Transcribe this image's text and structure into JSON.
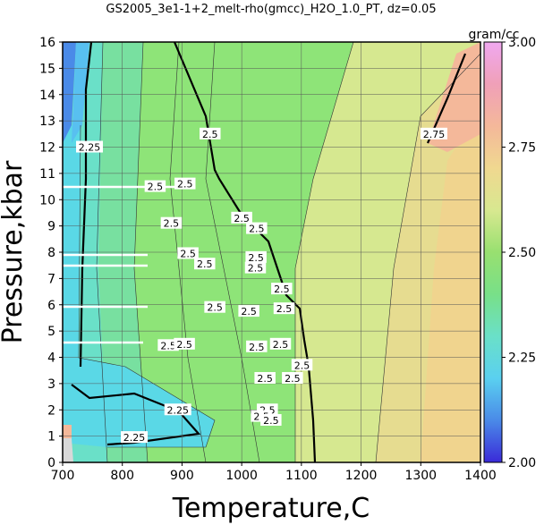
{
  "chart_data": {
    "type": "heatmap",
    "title": "GS2005_3e1-1+2_melt-rho(gmcc)_H2O_1.0_PT, dz=0.05",
    "xlabel": "Temperature,C",
    "ylabel": "Pressure,kbar",
    "xlim": [
      700,
      1400
    ],
    "ylim": [
      0,
      16
    ],
    "x_ticks": [
      "700",
      "800",
      "900",
      "1000",
      "1100",
      "1200",
      "1300",
      "1400"
    ],
    "y_ticks": [
      "0",
      "1",
      "2",
      "3",
      "4",
      "5",
      "6",
      "7",
      "8",
      "9",
      "10",
      "11",
      "12",
      "13",
      "14",
      "15",
      "16"
    ],
    "grid": true,
    "colorbar": {
      "unit": "gram/cc",
      "range": [
        2.0,
        3.0
      ],
      "ticks": [
        "2.00",
        "2.25",
        "2.50",
        "2.75",
        "3.00"
      ],
      "colors": [
        "#3a2ad8",
        "#4a8ae8",
        "#5ad0f0",
        "#6ae0c8",
        "#78e088",
        "#98e070",
        "#d8e890",
        "#f0d890",
        "#f4b89a",
        "#f0a0b8",
        "#f0a8f0"
      ]
    },
    "contour_labels": [
      {
        "text": "2.25",
        "t": 745,
        "p": 12.0
      },
      {
        "text": "2.25",
        "t": 893,
        "p": 2.0
      },
      {
        "text": "2.25",
        "t": 820,
        "p": 0.95
      },
      {
        "text": "2.5",
        "t": 947,
        "p": 12.5
      },
      {
        "text": "2.5",
        "t": 905,
        "p": 10.6
      },
      {
        "text": "2.5",
        "t": 855,
        "p": 10.5
      },
      {
        "text": "2.5",
        "t": 1000,
        "p": 9.3
      },
      {
        "text": "2.5",
        "t": 1025,
        "p": 8.9
      },
      {
        "text": "2.5",
        "t": 882,
        "p": 9.1
      },
      {
        "text": "2.5",
        "t": 910,
        "p": 7.95
      },
      {
        "text": "2.5",
        "t": 1024,
        "p": 7.8
      },
      {
        "text": "2.5",
        "t": 938,
        "p": 7.55
      },
      {
        "text": "2.5",
        "t": 1023,
        "p": 7.4
      },
      {
        "text": "2.5",
        "t": 1067,
        "p": 6.6
      },
      {
        "text": "2.5",
        "t": 955,
        "p": 5.9
      },
      {
        "text": "2.5",
        "t": 1012,
        "p": 5.75
      },
      {
        "text": "2.5",
        "t": 1071,
        "p": 5.85
      },
      {
        "text": "2.5",
        "t": 877,
        "p": 4.45
      },
      {
        "text": "2.5",
        "t": 904,
        "p": 4.5
      },
      {
        "text": "2.5",
        "t": 1025,
        "p": 4.4
      },
      {
        "text": "2.5",
        "t": 1065,
        "p": 4.5
      },
      {
        "text": "2.5",
        "t": 1101,
        "p": 3.7
      },
      {
        "text": "2.5",
        "t": 1039,
        "p": 3.2
      },
      {
        "text": "2.5",
        "t": 1085,
        "p": 3.2
      },
      {
        "text": "2.5",
        "t": 1043,
        "p": 2.0
      },
      {
        "text": "2.5",
        "t": 1033,
        "p": 1.75
      },
      {
        "text": "2.5",
        "t": 1049,
        "p": 1.6
      },
      {
        "text": "2.75",
        "t": 1322,
        "p": 12.5
      }
    ]
  }
}
